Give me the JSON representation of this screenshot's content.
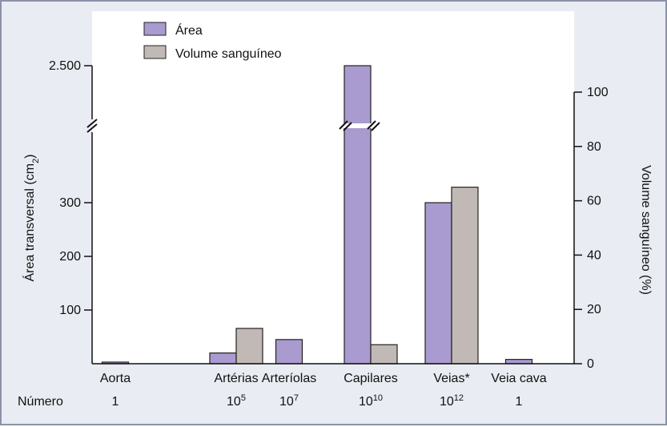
{
  "colors": {
    "area": "#a99bcf",
    "volume": "#c1b9b6",
    "panel": "#ffffff",
    "frame_bg": "#e9ecf2",
    "border": "#8a93a8"
  },
  "chart_data": {
    "type": "bar",
    "categories": [
      "Aorta",
      "Artérias",
      "Arteríolas",
      "Capilares",
      "Veias*",
      "Veia cava"
    ],
    "number_label": "Número",
    "numbers": [
      {
        "base": "1",
        "exp": ""
      },
      {
        "base": "10",
        "exp": "5"
      },
      {
        "base": "10",
        "exp": "7"
      },
      {
        "base": "10",
        "exp": "10"
      },
      {
        "base": "10",
        "exp": "12"
      },
      {
        "base": "1",
        "exp": ""
      }
    ],
    "series": [
      {
        "name": "Área",
        "axis": "left",
        "values": [
          3,
          20,
          45,
          2500,
          300,
          8
        ]
      },
      {
        "name": "Volume sanguíneo",
        "axis": "right",
        "values": [
          null,
          13,
          null,
          7,
          65,
          null
        ]
      }
    ],
    "ylabel_left": "Área transversal (cm",
    "ylabel_left_sub": "2",
    "ylabel_left_close": ")",
    "ylabel_right": "Volume sanguíneo (%)",
    "yticks_left": [
      "100",
      "200",
      "300",
      "2.500"
    ],
    "yticks_right": [
      "0",
      "20",
      "40",
      "60",
      "80",
      "100"
    ],
    "ylim_left_lower": [
      0,
      400
    ],
    "axis_break_left": true,
    "ylim_right": [
      0,
      100
    ],
    "legend_position": "top-left"
  }
}
